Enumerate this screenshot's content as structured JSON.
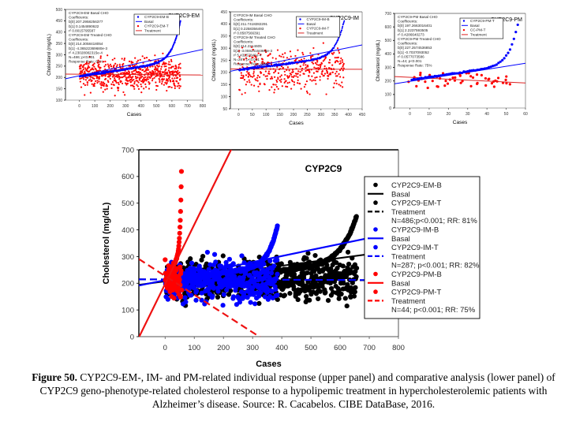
{
  "caption": {
    "figure_label": "Figure 50.",
    "line1": " CYP2C9-EM-, IM- and PM-related individual response (upper panel) and comparative analysis (lower panel) of",
    "line2": "CYP2C9 geno-phenotype-related cholesterol response to a hypolipemic treatment in hypercholesterolemic patients with",
    "line3": "Alzheimer’s disease. Source: R. Cacabelos. CIBE DataBase, 2016."
  },
  "colors": {
    "basal": "#0000ff",
    "treated": "#ff0000",
    "em": "#000000",
    "im": "#0000ff",
    "pm": "#ff0000"
  },
  "chart_data": [
    {
      "id": "em",
      "type": "scatter",
      "title": "CYP2C9-EM",
      "xlabel": "Cases",
      "ylabel": "Cholesterol (mg/dL)",
      "xlim": [
        -90,
        800
      ],
      "ylim": [
        100,
        500
      ],
      "xticks": [
        0,
        100,
        200,
        300,
        400,
        500,
        600,
        700,
        800
      ],
      "yticks": [
        100,
        150,
        200,
        250,
        300,
        350,
        400,
        450,
        500
      ],
      "n": 656,
      "legend": [
        "CYP2C9-EM-B",
        "Basal",
        "CYP2C9-EM-T",
        "Treatment"
      ],
      "legend_position": "top-right",
      "annotation": [
        "CYP2C9-EM Basal CHO",
        "Coefficients:",
        "b[0]  207.2958256377",
        "b[1]  0.1454890622",
        "r²  0.8015795587",
        "CYP2C9-EM Treated CHO",
        "Coefficients:",
        "b[0]  214.3058418054",
        "b[1]  -4.36522369680e-3",
        "r²  4.23028082315e-4",
        "N=486; p<0.001",
        "Response Rate: 81%"
      ],
      "series": [
        {
          "name": "CYP2C9-EM-B",
          "kind": "points",
          "color": "#0000ff",
          "shape": "sorted-curve",
          "range": [
            205,
            450
          ]
        },
        {
          "name": "Basal",
          "kind": "line",
          "color": "#0000ff",
          "intercept": 207.3,
          "slope": 0.1455
        },
        {
          "name": "CYP2C9-EM-T",
          "kind": "points",
          "color": "#ff0000",
          "shape": "scatter",
          "mean": 213,
          "spread": [
            120,
            325
          ]
        },
        {
          "name": "Treatment",
          "kind": "line",
          "color": "#ff0000",
          "intercept": 214.3,
          "slope": -0.0044
        }
      ]
    },
    {
      "id": "im",
      "type": "scatter",
      "title": "CYP2C9-IM",
      "xlabel": "Cases",
      "ylabel": "Cholesterol (mg/dL)",
      "xlim": [
        -30,
        450
      ],
      "ylim": [
        50,
        450
      ],
      "xticks": [
        0,
        50,
        100,
        150,
        200,
        250,
        300,
        350,
        400,
        450
      ],
      "yticks": [
        50,
        100,
        150,
        200,
        250,
        300,
        350,
        400,
        450
      ],
      "n": 385,
      "legend": [
        "CYP2C9-IM-B",
        "Basal",
        "CYP2C9-IM-T",
        "Treatment"
      ],
      "legend_position": "top-right",
      "annotation": [
        "CYP2C9-IM Basal CHO",
        "Coefficients:",
        "b[0]  211.7418282291",
        "b[1]  0.2258356493",
        "r²  0.8587566391",
        "CYP2C9-IM Treated CHO",
        "Coefficients:",
        "b[0]  214.2214605",
        "b[1]  -3.05924164986e-3",
        "r²  5.43257846e-4",
        "N=287; p<0.001",
        "Response Rate: 82%"
      ],
      "series": [
        {
          "name": "CYP2C9-IM-B",
          "kind": "points",
          "color": "#0000ff",
          "shape": "sorted-curve",
          "range": [
            210,
            415
          ]
        },
        {
          "name": "Basal",
          "kind": "line",
          "color": "#0000ff",
          "intercept": 211.7,
          "slope": 0.2258
        },
        {
          "name": "CYP2C9-IM-T",
          "kind": "points",
          "color": "#ff0000",
          "shape": "scatter",
          "mean": 212,
          "spread": [
            110,
            350
          ]
        },
        {
          "name": "Treatment",
          "kind": "line",
          "color": "#ff0000",
          "intercept": 214.2,
          "slope": -0.0031
        }
      ]
    },
    {
      "id": "pm",
      "type": "scatter",
      "title": "CYP2C9-PM",
      "xlabel": "Cases",
      "ylabel": "Cholesterol (mg/dL)",
      "xlim": [
        -8,
        60
      ],
      "ylim": [
        0,
        700
      ],
      "xticks": [
        0,
        10,
        20,
        30,
        40,
        50,
        60
      ],
      "yticks": [
        0,
        100,
        200,
        300,
        400,
        500,
        600,
        700
      ],
      "n": 56,
      "legend": [
        "CYP2C9-PM-T",
        "Basal",
        "CC-PM-T",
        "Treatment"
      ],
      "legend_position": "top-right",
      "annotation": [
        "CYP2C9-PM Basal CHO",
        "Coefficients:",
        "b[0]  197.2663016401",
        "b[1]  2.2237593505",
        "r²  0.4286640273",
        "CYP2C9-PM Treated CHO",
        "Coefficients:",
        "b[0]  227.2574536853",
        "b[1]  -0.7037093052",
        "r²  0.0577073586",
        "N=44; p<0.001",
        "Response Rate: 75%"
      ],
      "series": [
        {
          "name": "CYP2C9-PM-B",
          "kind": "points",
          "color": "#0000ff",
          "shape": "sorted-curve",
          "range": [
            210,
            620
          ]
        },
        {
          "name": "Basal",
          "kind": "line",
          "color": "#0000ff",
          "intercept": 197.3,
          "slope": 2.224
        },
        {
          "name": "CYP2C9-PM-T",
          "kind": "points",
          "color": "#ff0000",
          "shape": "scatter",
          "mean": 210,
          "spread": [
            110,
            290
          ]
        },
        {
          "name": "Treatment",
          "kind": "line",
          "color": "#ff0000",
          "intercept": 227.3,
          "slope": -0.704
        }
      ]
    },
    {
      "id": "combined",
      "type": "scatter",
      "title": "CYP2C9",
      "xlabel": "Cases",
      "ylabel": "Cholesterol (mg/dL)",
      "xlim": [
        -90,
        800
      ],
      "ylim": [
        0,
        700
      ],
      "xticks": [
        0,
        100,
        200,
        300,
        400,
        500,
        600,
        700,
        800
      ],
      "yticks": [
        0,
        100,
        200,
        300,
        400,
        500,
        600,
        700
      ],
      "legend_position": "right",
      "legend": [
        {
          "label": "CYP2C9-EM-B",
          "kind": "dot",
          "color": "#000000"
        },
        {
          "label": "Basal",
          "kind": "solid",
          "color": "#000000"
        },
        {
          "label": "CYP2C9-EM-T",
          "kind": "dot",
          "color": "#000000"
        },
        {
          "label": "Treatment",
          "kind": "dash",
          "color": "#000000"
        },
        {
          "label": "N=486;p<0.001; RR: 81%",
          "kind": "text"
        },
        {
          "label": "CYP2C9-IM-B",
          "kind": "dot",
          "color": "#0000ff"
        },
        {
          "label": "Basal",
          "kind": "solid",
          "color": "#0000ff"
        },
        {
          "label": "CYP2C9-IM-T",
          "kind": "dot",
          "color": "#0000ff"
        },
        {
          "label": "Treatment",
          "kind": "dash",
          "color": "#0000ff"
        },
        {
          "label": "N=287; p<0.001; RR: 82%",
          "kind": "text"
        },
        {
          "label": "CYP2C9-PM-B",
          "kind": "dot",
          "color": "#ff0000"
        },
        {
          "label": "Basal",
          "kind": "solid",
          "color": "#ff0000"
        },
        {
          "label": "CYP2C9-PM-T",
          "kind": "dot",
          "color": "#ff0000"
        },
        {
          "label": "Treatment",
          "kind": "dash",
          "color": "#ff0000"
        },
        {
          "label": "N=44; p<0.001; RR: 75%",
          "kind": "text"
        }
      ],
      "groups": [
        {
          "name": "EM",
          "color": "#000000",
          "n": 656,
          "basal_range": [
            205,
            450
          ],
          "treated_mean": 213,
          "treated_spread": [
            115,
            330
          ],
          "basal_line": {
            "intercept": 207.3,
            "slope": 0.1455
          },
          "treated_line": {
            "intercept": 214.3,
            "slope": -0.0044
          }
        },
        {
          "name": "IM",
          "color": "#0000ff",
          "n": 385,
          "basal_range": [
            210,
            415
          ],
          "treated_mean": 212,
          "treated_spread": [
            110,
            335
          ],
          "basal_line": {
            "intercept": 211.7,
            "slope": 0.2258
          },
          "treated_line": {
            "intercept": 214.2,
            "slope": -0.0031
          }
        },
        {
          "name": "PM",
          "color": "#ff0000",
          "n": 56,
          "basal_range": [
            210,
            620
          ],
          "treated_mean": 210,
          "treated_spread": [
            110,
            345
          ],
          "basal_line": {
            "intercept": 197.3,
            "slope": 2.224
          },
          "treated_line": {
            "intercept": 227.3,
            "slope": -0.704
          }
        }
      ]
    }
  ]
}
